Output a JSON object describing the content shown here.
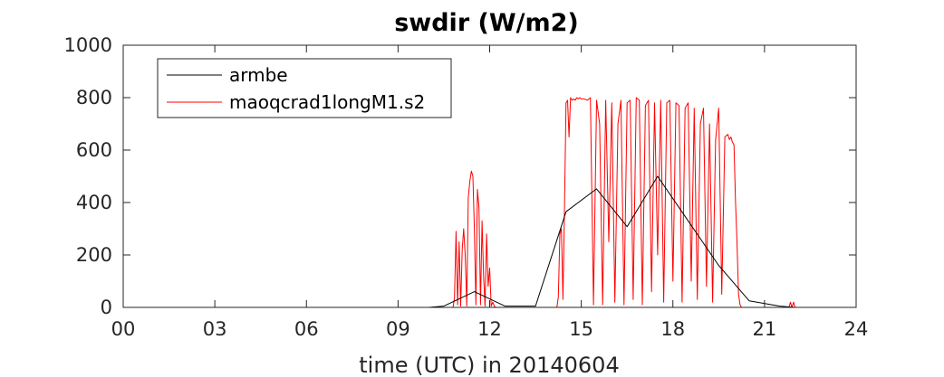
{
  "chart_data": {
    "type": "line",
    "title": "swdir  (W/m2)",
    "xlabel": "time (UTC) in 20140604",
    "ylabel": "",
    "xlim": [
      0,
      24
    ],
    "ylim": [
      0,
      1000
    ],
    "xticks": [
      0,
      3,
      6,
      9,
      12,
      15,
      18,
      21,
      24
    ],
    "xtick_labels": [
      "00",
      "03",
      "06",
      "09",
      "12",
      "15",
      "18",
      "21",
      "24"
    ],
    "yticks": [
      0,
      200,
      400,
      600,
      800,
      1000
    ],
    "ytick_labels": [
      "0",
      "200",
      "400",
      "600",
      "800",
      "1000"
    ],
    "grid": false,
    "legend_position": "top-left",
    "series": [
      {
        "name": "armbe",
        "color": "#000000",
        "x": [
          0,
          1,
          2,
          3,
          4,
          5,
          6,
          7,
          8,
          9,
          10,
          10.5,
          11.5,
          12.5,
          13.5,
          14.5,
          15.5,
          16.5,
          17.5,
          18.5,
          19.5,
          20.5,
          21.5,
          22,
          23,
          24
        ],
        "y": [
          0,
          0,
          0,
          0,
          0,
          0,
          0,
          0,
          0,
          0,
          0,
          5,
          60,
          5,
          5,
          365,
          452,
          308,
          500,
          330,
          160,
          25,
          5,
          0,
          0,
          0
        ]
      },
      {
        "name": "maoqcrad1longM1.s2",
        "color": "#ff0000",
        "x": [
          0,
          10.8,
          10.85,
          10.9,
          10.95,
          11.0,
          11.05,
          11.1,
          11.15,
          11.2,
          11.25,
          11.3,
          11.35,
          11.4,
          11.45,
          11.5,
          11.55,
          11.6,
          11.65,
          11.7,
          11.75,
          11.8,
          11.85,
          11.9,
          11.95,
          12.0,
          12.05,
          12.1,
          12.15,
          12.2,
          14.2,
          14.25,
          14.3,
          14.35,
          14.4,
          14.45,
          14.5,
          14.55,
          14.6,
          14.65,
          14.7,
          14.75,
          14.8,
          14.85,
          14.9,
          14.95,
          15.0,
          15.1,
          15.2,
          15.3,
          15.4,
          15.5,
          15.6,
          15.7,
          15.8,
          15.9,
          16.0,
          16.1,
          16.2,
          16.3,
          16.4,
          16.5,
          16.6,
          16.7,
          16.8,
          16.9,
          17.0,
          17.1,
          17.2,
          17.3,
          17.4,
          17.5,
          17.6,
          17.7,
          17.8,
          17.9,
          18.0,
          18.1,
          18.2,
          18.3,
          18.4,
          18.5,
          18.6,
          18.7,
          18.8,
          18.9,
          19.0,
          19.1,
          19.2,
          19.3,
          19.4,
          19.5,
          19.6,
          19.7,
          19.8,
          19.85,
          19.9,
          19.95,
          20.0,
          20.05,
          20.1,
          20.15,
          20.2,
          20.25,
          21.8,
          21.85,
          21.9,
          21.95,
          22.0,
          24
        ],
        "y": [
          0,
          0,
          40,
          290,
          10,
          250,
          5,
          220,
          300,
          200,
          5,
          420,
          480,
          520,
          500,
          300,
          10,
          450,
          380,
          10,
          330,
          120,
          5,
          280,
          80,
          150,
          5,
          20,
          5,
          0,
          0,
          40,
          280,
          300,
          30,
          380,
          780,
          790,
          650,
          800,
          790,
          795,
          790,
          800,
          795,
          800,
          795,
          795,
          790,
          800,
          10,
          790,
          700,
          10,
          790,
          250,
          780,
          20,
          700,
          790,
          10,
          780,
          790,
          30,
          800,
          790,
          10,
          770,
          790,
          60,
          780,
          200,
          790,
          20,
          780,
          790,
          100,
          780,
          770,
          20,
          760,
          780,
          100,
          760,
          30,
          700,
          760,
          80,
          700,
          20,
          640,
          760,
          50,
          650,
          660,
          640,
          650,
          630,
          620,
          400,
          250,
          50,
          10,
          0,
          0,
          20,
          0,
          20,
          0,
          0
        ]
      }
    ]
  }
}
